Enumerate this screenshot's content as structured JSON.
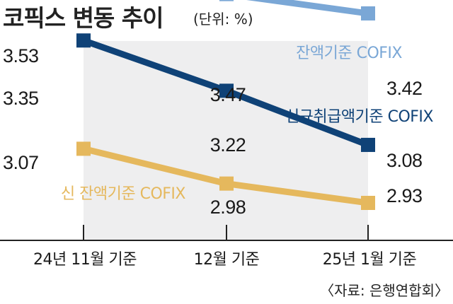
{
  "header": {
    "title": "코픽스 변동 추이",
    "unit": "(단위: %)"
  },
  "source": "〈자료: 은행연합회〉",
  "chart_data": {
    "type": "line",
    "categories": [
      "24년 11월 기준",
      "12월 기준",
      "25년 1월 기준"
    ],
    "ylim": [
      2.5,
      3.8
    ],
    "grid": false,
    "series": [
      {
        "name": "잔액기준 COFIX",
        "values": [
          3.53,
          3.47,
          3.42
        ],
        "value_labels": [
          "3.53",
          "3.47",
          "3.42"
        ],
        "color": "#7aa7d6"
      },
      {
        "name": "신규취급액기준 COFIX",
        "values": [
          3.35,
          3.22,
          3.08
        ],
        "value_labels": [
          "3.35",
          "3.22",
          "3.08"
        ],
        "color": "#0f4277"
      },
      {
        "name": "신 잔액기준 COFIX",
        "values": [
          3.07,
          2.98,
          2.93
        ],
        "value_labels": [
          "3.07",
          "2.98",
          "2.93"
        ],
        "color": "#e5b85d"
      }
    ]
  }
}
